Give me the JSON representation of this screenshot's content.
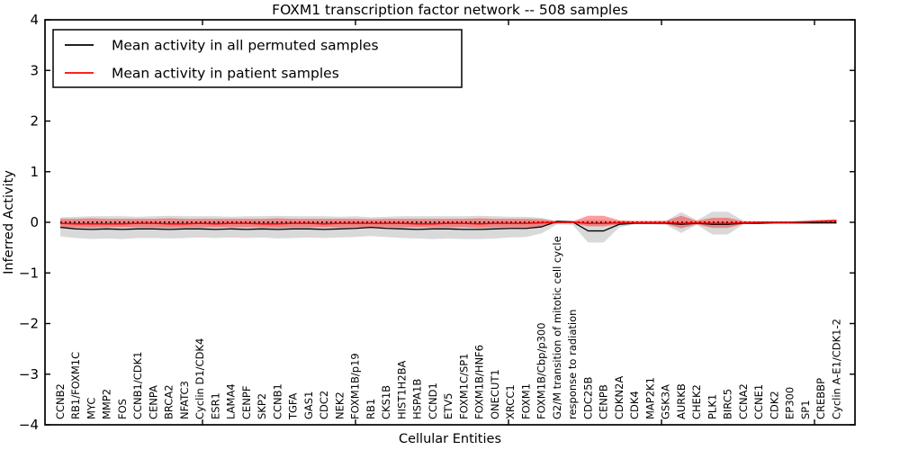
{
  "figure": {
    "background": "#ffffff"
  },
  "chart_data": {
    "type": "line",
    "title": "FOXM1 transcription factor network -- 508 samples",
    "xlabel": "Cellular Entities",
    "ylabel": "Inferred Activity",
    "ylim": [
      -4,
      4
    ],
    "yticks": [
      -4,
      -3,
      -2,
      -1,
      0,
      1,
      2,
      3,
      4
    ],
    "grid": false,
    "legend_position": "upper left",
    "legend": [
      {
        "label": "Mean activity in all permuted samples",
        "color": "#000000"
      },
      {
        "label": "Mean activity in patient samples",
        "color": "#ff0000"
      }
    ],
    "categories": [
      "CCNB2",
      "RB1/FOXM1C",
      "MYC",
      "MMP2",
      "FOS",
      "CCNB1/CDK1",
      "CENPA",
      "BRCA2",
      "NFATC3",
      "Cyclin D1/CDK4",
      "ESR1",
      "LAMA4",
      "CENPF",
      "SKP2",
      "CCNB1",
      "TGFA",
      "GAS1",
      "CDC2",
      "NEK2",
      "FOXM1B/p19",
      "RB1",
      "CKS1B",
      "HIST1H2BA",
      "HSPA1B",
      "CCND1",
      "ETV5",
      "FOXM1C/SP1",
      "FOXM1B/HNF6",
      "ONECUT1",
      "XRCC1",
      "FOXM1",
      "FOXM1B/Cbp/p300",
      "G2/M transition of mitotic cell cycle",
      "response to radiation",
      "CDC25B",
      "CENPB",
      "CDKN2A",
      "CDK4",
      "MAP2K1",
      "GSK3A",
      "AURKB",
      "CHEK2",
      "PLK1",
      "BIRC5",
      "CCNA2",
      "CCNE1",
      "CDK2",
      "EP300",
      "SP1",
      "CREBBP",
      "Cyclin A-E1/CDK1-2"
    ],
    "series": [
      {
        "name": "Mean activity in all permuted samples",
        "color": "#000000",
        "values": [
          -0.1,
          -0.13,
          -0.14,
          -0.13,
          -0.14,
          -0.13,
          -0.13,
          -0.14,
          -0.13,
          -0.13,
          -0.14,
          -0.13,
          -0.14,
          -0.13,
          -0.14,
          -0.13,
          -0.13,
          -0.14,
          -0.13,
          -0.12,
          -0.1,
          -0.12,
          -0.13,
          -0.14,
          -0.13,
          -0.13,
          -0.14,
          -0.14,
          -0.13,
          -0.12,
          -0.12,
          -0.09,
          0.02,
          0.01,
          -0.17,
          -0.17,
          -0.04,
          -0.02,
          -0.02,
          -0.02,
          -0.04,
          -0.02,
          -0.04,
          -0.04,
          -0.02,
          -0.02,
          -0.01,
          -0.01,
          -0.01,
          -0.01,
          -0.01
        ]
      },
      {
        "name": "Mean activity in patient samples",
        "color": "#ff0000",
        "values": [
          -0.02,
          -0.03,
          -0.03,
          -0.03,
          -0.03,
          -0.02,
          -0.02,
          -0.03,
          -0.03,
          -0.02,
          -0.03,
          -0.02,
          -0.02,
          -0.03,
          -0.03,
          -0.02,
          -0.02,
          -0.03,
          -0.02,
          -0.02,
          -0.02,
          -0.02,
          -0.02,
          -0.03,
          -0.03,
          -0.02,
          -0.02,
          -0.03,
          -0.02,
          -0.02,
          -0.02,
          -0.01,
          0.0,
          0.0,
          -0.02,
          -0.02,
          -0.01,
          -0.01,
          -0.01,
          -0.01,
          -0.02,
          -0.01,
          -0.02,
          -0.02,
          -0.01,
          0.0,
          0.0,
          0.0,
          0.01,
          0.02,
          0.03
        ]
      }
    ],
    "bands": [
      {
        "name": "permuted-band",
        "color": "rgba(0,0,0,0.15)",
        "upper": [
          0.1,
          0.11,
          0.12,
          0.12,
          0.12,
          0.11,
          0.12,
          0.13,
          0.12,
          0.12,
          0.12,
          0.11,
          0.12,
          0.12,
          0.13,
          0.12,
          0.12,
          0.12,
          0.11,
          0.12,
          0.1,
          0.11,
          0.12,
          0.12,
          0.12,
          0.12,
          0.12,
          0.13,
          0.12,
          0.11,
          0.11,
          0.09,
          0.03,
          0.02,
          0.05,
          0.05,
          0.03,
          0.02,
          0.02,
          0.03,
          0.2,
          0.04,
          0.21,
          0.21,
          0.03,
          0.02,
          0.02,
          0.02,
          0.02,
          0.02,
          0.02
        ],
        "lower": [
          -0.28,
          -0.31,
          -0.33,
          -0.32,
          -0.33,
          -0.31,
          -0.31,
          -0.32,
          -0.31,
          -0.3,
          -0.31,
          -0.3,
          -0.31,
          -0.3,
          -0.32,
          -0.31,
          -0.3,
          -0.31,
          -0.3,
          -0.29,
          -0.27,
          -0.29,
          -0.31,
          -0.32,
          -0.33,
          -0.32,
          -0.33,
          -0.33,
          -0.32,
          -0.3,
          -0.29,
          -0.22,
          -0.04,
          -0.05,
          -0.4,
          -0.4,
          -0.1,
          -0.04,
          -0.04,
          -0.05,
          -0.21,
          -0.05,
          -0.24,
          -0.24,
          -0.04,
          -0.03,
          -0.03,
          -0.03,
          -0.03,
          -0.03,
          -0.03
        ]
      },
      {
        "name": "patient-band",
        "color": "rgba(255,20,20,0.42)",
        "upper": [
          0.07,
          0.07,
          0.08,
          0.07,
          0.07,
          0.07,
          0.07,
          0.08,
          0.07,
          0.07,
          0.07,
          0.07,
          0.07,
          0.07,
          0.08,
          0.07,
          0.07,
          0.07,
          0.07,
          0.07,
          0.06,
          0.07,
          0.07,
          0.07,
          0.07,
          0.07,
          0.07,
          0.08,
          0.07,
          0.07,
          0.07,
          0.06,
          0.02,
          0.02,
          0.13,
          0.13,
          0.04,
          0.03,
          0.03,
          0.03,
          0.13,
          0.03,
          0.09,
          0.09,
          0.02,
          0.02,
          0.02,
          0.02,
          0.03,
          0.05,
          0.06
        ],
        "lower": [
          -0.1,
          -0.1,
          -0.11,
          -0.1,
          -0.1,
          -0.1,
          -0.1,
          -0.11,
          -0.1,
          -0.1,
          -0.1,
          -0.1,
          -0.1,
          -0.1,
          -0.11,
          -0.1,
          -0.1,
          -0.1,
          -0.1,
          -0.1,
          -0.09,
          -0.1,
          -0.1,
          -0.1,
          -0.1,
          -0.1,
          -0.1,
          -0.11,
          -0.1,
          -0.1,
          -0.1,
          -0.08,
          -0.02,
          -0.02,
          -0.08,
          -0.08,
          -0.04,
          -0.03,
          -0.03,
          -0.03,
          -0.12,
          -0.04,
          -0.11,
          -0.11,
          -0.03,
          -0.02,
          -0.02,
          -0.02,
          -0.02,
          -0.02,
          -0.01
        ]
      }
    ],
    "zero_line": {
      "value": 0,
      "style": "dotted",
      "color": "#000000"
    }
  }
}
